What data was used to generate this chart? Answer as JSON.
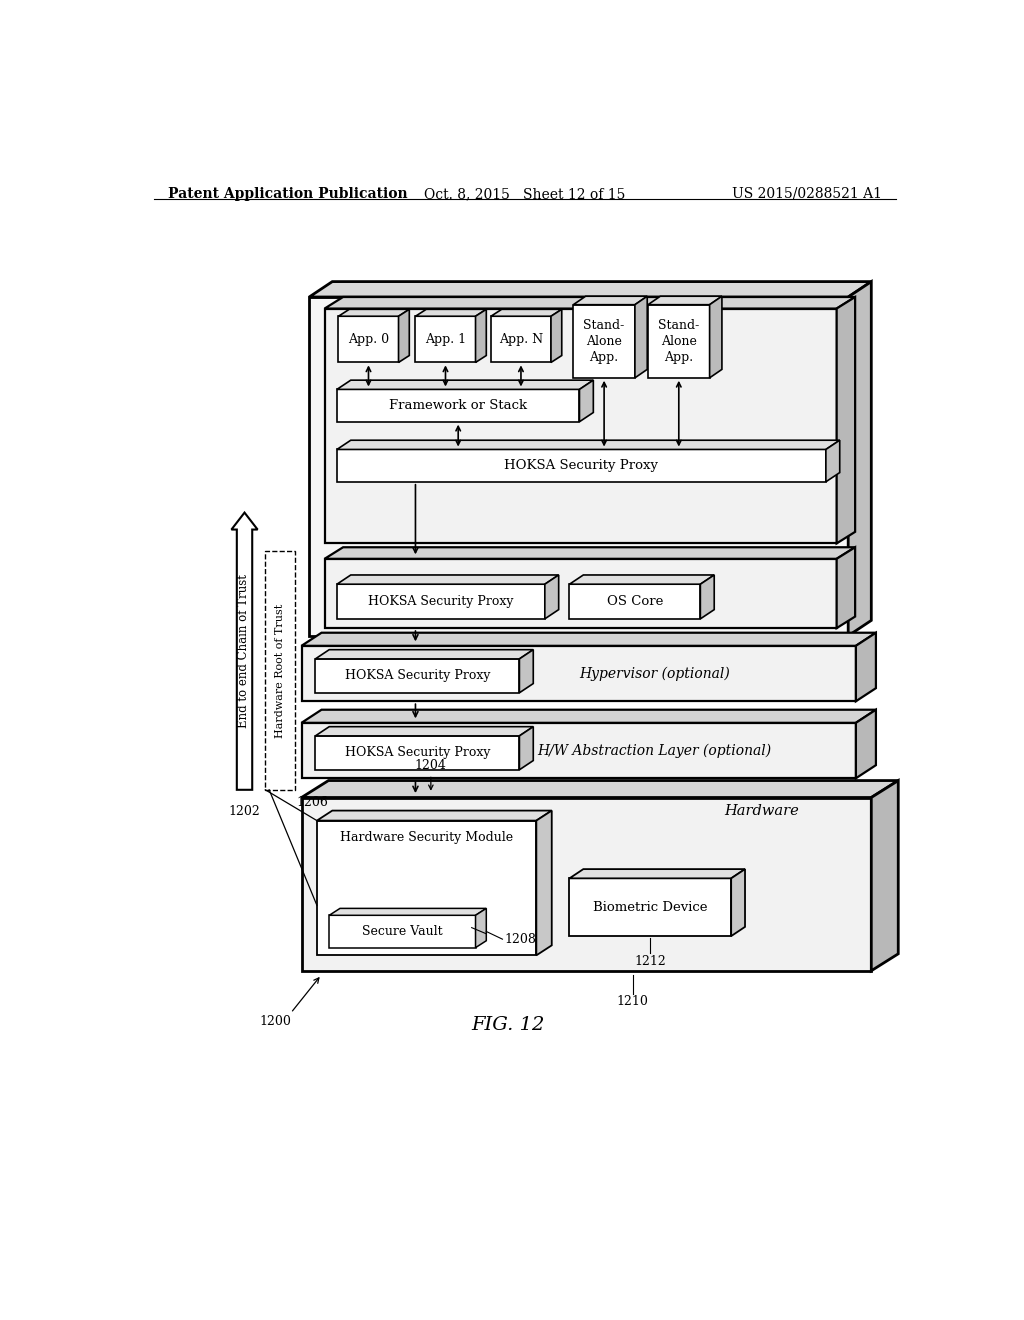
{
  "bg_color": "#ffffff",
  "header_left": "Patent Application Publication",
  "header_center": "Oct. 8, 2015   Sheet 12 of 15",
  "header_right": "US 2015/0288521 A1",
  "fig_label": "FIG. 12",
  "labels": {
    "arrow_left": "End to end Chain of Trust",
    "arrow_right": "Hardware Root of Trust",
    "hw_label": "Hardware",
    "hypervisor": "Hypervisor (optional)",
    "hw_abstraction": "H/W Abstraction Layer (optional)",
    "hoksa_proxy": "HOKSA Security Proxy",
    "os_core": "OS Core",
    "framework": "Framework or Stack",
    "app0": "App. 0",
    "app1": "App. 1",
    "appN": "App. N",
    "standalone1": "Stand-\nAlone\nApp.",
    "standalone2": "Stand-\nAlone\nApp.",
    "hsm": "Hardware Security Module",
    "secure_vault": "Secure Vault",
    "biometric": "Biometric Device",
    "num_1202": "1202",
    "num_1204": "1204",
    "num_1206": "1206",
    "num_1208": "1208",
    "num_1210": "1210",
    "num_1212": "1212",
    "num_1200": "1200"
  }
}
